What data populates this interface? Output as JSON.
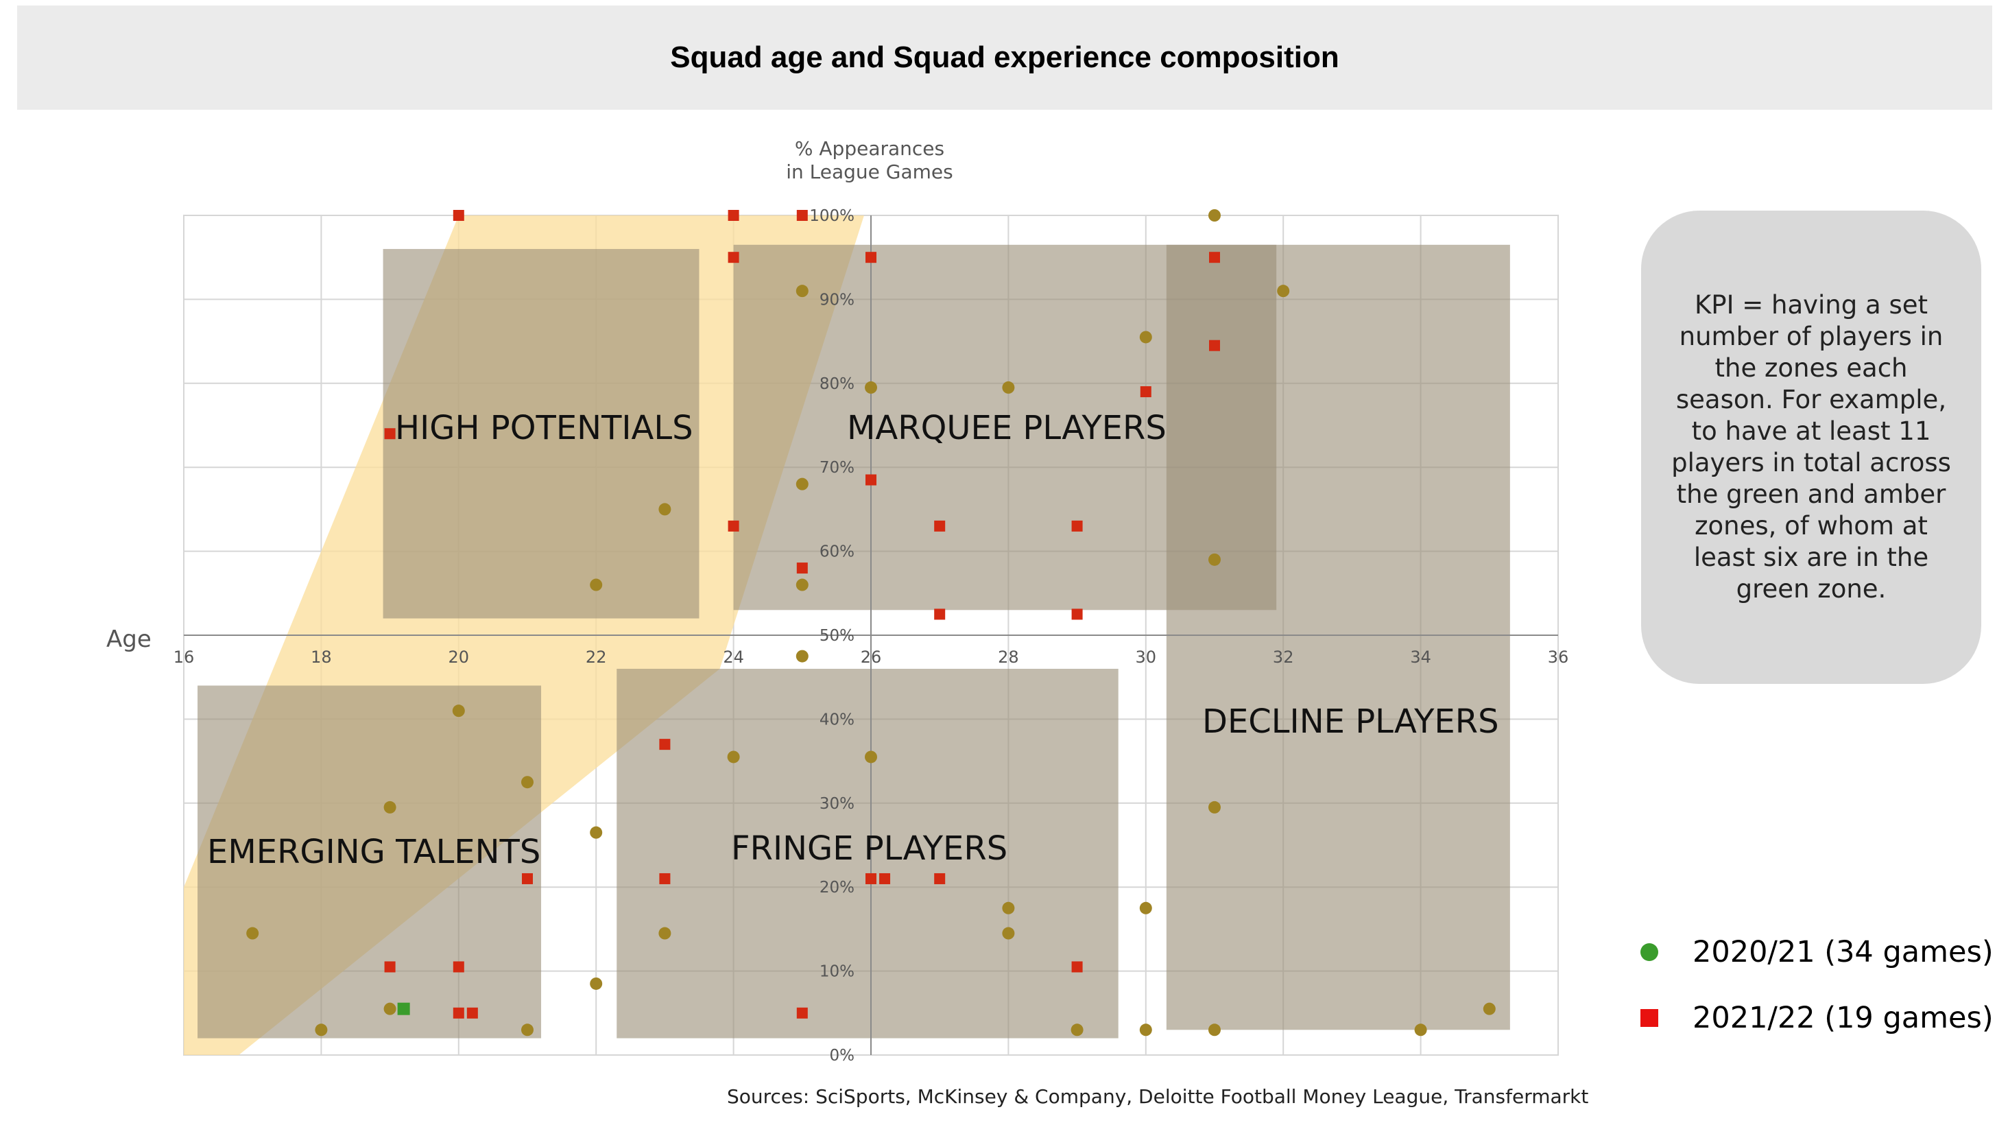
{
  "title": "Squad age and Squad experience composition",
  "kpi_text": "KPI = having a set number of players in the zones each season. For example, to have at least 11 players in total across the green and amber zones, of whom at least six are in the green zone.",
  "sources": "Sources: SciSports, McKinsey & Company, Deloitte Football Money League, Transfermarkt",
  "legend": [
    {
      "label": "2020/21 (34 games)",
      "color": "#3a9c2c",
      "shape": "circle"
    },
    {
      "label": "2021/22 (19 games)",
      "color": "#e8110f",
      "shape": "square"
    }
  ],
  "chart_data": {
    "type": "scatter",
    "xlabel": "Age",
    "ylabel": "% Appearances in League Games",
    "xlim": [
      16,
      36
    ],
    "ylim": [
      0,
      100
    ],
    "x_ticks": [
      "16",
      "18",
      "20",
      "22",
      "24",
      "26",
      "28",
      "30",
      "32",
      "34",
      "36"
    ],
    "y_ticks": [
      "0%",
      "10%",
      "20%",
      "30%",
      "40%",
      "50%",
      "60%",
      "70%",
      "80%",
      "90%",
      "100%"
    ],
    "grid": true,
    "zones": [
      {
        "label": "HIGH POTENTIALS",
        "x": [
          18.9,
          23.5
        ],
        "y": [
          52,
          96
        ]
      },
      {
        "label": "MARQUEE PLAYERS",
        "x": [
          24.0,
          31.9
        ],
        "y": [
          53,
          96.5
        ]
      },
      {
        "label": "EMERGING TALENTS",
        "x": [
          16.2,
          21.2
        ],
        "y": [
          2,
          44
        ]
      },
      {
        "label": "FRINGE PLAYERS",
        "x": [
          22.3,
          29.6
        ],
        "y": [
          2,
          46
        ]
      },
      {
        "label": "DECLINE PLAYERS",
        "x": [
          30.3,
          35.3
        ],
        "y": [
          3,
          96.5
        ]
      }
    ],
    "series": [
      {
        "name": "2020/21 (34 games)",
        "marker": "circle",
        "points": [
          [
            31,
            100
          ],
          [
            25,
            91
          ],
          [
            32,
            91
          ],
          [
            30,
            85.5
          ],
          [
            26,
            79.5
          ],
          [
            28,
            79.5
          ],
          [
            25,
            68
          ],
          [
            23,
            65
          ],
          [
            31,
            59
          ],
          [
            22,
            56
          ],
          [
            25,
            56
          ],
          [
            25,
            47.5
          ],
          [
            20,
            41
          ],
          [
            26,
            35.5
          ],
          [
            24,
            35.5
          ],
          [
            21,
            32.5
          ],
          [
            19,
            29.5
          ],
          [
            31,
            29.5
          ],
          [
            22,
            26.5
          ],
          [
            28,
            17.5
          ],
          [
            30,
            17.5
          ],
          [
            17,
            14.5
          ],
          [
            23,
            14.5
          ],
          [
            28,
            14.5
          ],
          [
            22,
            8.5
          ],
          [
            19,
            5.5
          ],
          [
            35,
            5.5
          ],
          [
            18,
            3
          ],
          [
            21,
            3
          ],
          [
            29,
            3
          ],
          [
            30,
            3
          ],
          [
            31,
            3
          ],
          [
            34,
            3
          ]
        ]
      },
      {
        "name": "2021/22 (19 games)",
        "marker": "square",
        "points": [
          [
            20,
            100
          ],
          [
            24,
            100
          ],
          [
            25,
            100
          ],
          [
            24,
            95
          ],
          [
            26,
            95
          ],
          [
            31,
            95
          ],
          [
            31,
            84.5
          ],
          [
            30,
            79
          ],
          [
            19,
            74
          ],
          [
            26,
            68.5
          ],
          [
            24,
            63
          ],
          [
            27,
            63
          ],
          [
            29,
            63
          ],
          [
            25,
            58
          ],
          [
            27,
            52.5
          ],
          [
            29,
            52.5
          ],
          [
            23,
            37
          ],
          [
            21,
            21
          ],
          [
            23,
            21
          ],
          [
            26,
            21
          ],
          [
            26.2,
            21
          ],
          [
            27,
            21
          ],
          [
            19,
            10.5
          ],
          [
            20,
            10.5
          ],
          [
            29,
            10.5
          ],
          [
            20,
            5
          ],
          [
            20.2,
            5
          ],
          [
            25,
            5
          ]
        ]
      }
    ],
    "highlight_point": {
      "x": 19.2,
      "y": 5.5,
      "color": "#3a9c2c"
    }
  }
}
